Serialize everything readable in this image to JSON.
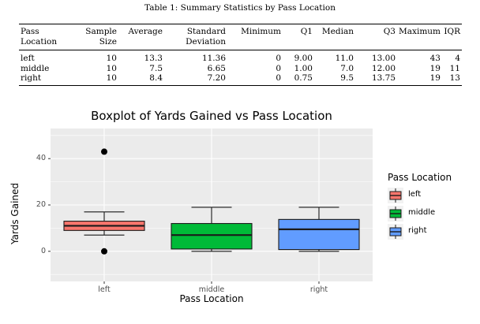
{
  "table": {
    "caption": "Table 1: Summary Statistics by Pass Location",
    "headers": [
      [
        "Pass",
        "Location"
      ],
      [
        "Sample",
        "Size"
      ],
      [
        "Average"
      ],
      [
        "Standard",
        "Deviation"
      ],
      [
        "Minimum"
      ],
      [
        "Q1"
      ],
      [
        "Median"
      ],
      [
        "Q3"
      ],
      [
        "Maximum"
      ],
      [
        "IQR"
      ]
    ],
    "rows": [
      [
        "left",
        "10",
        "13.3",
        "11.36",
        "0",
        "9.00",
        "11.0",
        "13.00",
        "43",
        "4"
      ],
      [
        "middle",
        "10",
        "7.5",
        "6.65",
        "0",
        "1.00",
        "7.0",
        "12.00",
        "19",
        "11"
      ],
      [
        "right",
        "10",
        "8.4",
        "7.20",
        "0",
        "0.75",
        "9.5",
        "13.75",
        "19",
        "13"
      ]
    ]
  },
  "chart_data": {
    "type": "boxplot",
    "title": "Boxplot of Yards Gained vs Pass Location",
    "xlabel": "Pass Location",
    "ylabel": "Yards Gained",
    "ylim": [
      -13,
      53
    ],
    "yticks": [
      0,
      20,
      40
    ],
    "grid": true,
    "legend": {
      "title": "Pass Location",
      "placement": "right"
    },
    "categories": [
      "left",
      "middle",
      "right"
    ],
    "series": [
      {
        "name": "left",
        "color": "#F8766D",
        "lower_whisker": 7,
        "q1": 9,
        "median": 11,
        "q3": 13,
        "upper_whisker": 17,
        "outliers": [
          0,
          43
        ]
      },
      {
        "name": "middle",
        "color": "#00BA38",
        "lower_whisker": 0,
        "q1": 1,
        "median": 7,
        "q3": 12,
        "upper_whisker": 19,
        "outliers": []
      },
      {
        "name": "right",
        "color": "#619CFF",
        "lower_whisker": 0,
        "q1": 0.75,
        "median": 9.5,
        "q3": 13.75,
        "upper_whisker": 19,
        "outliers": []
      }
    ]
  }
}
